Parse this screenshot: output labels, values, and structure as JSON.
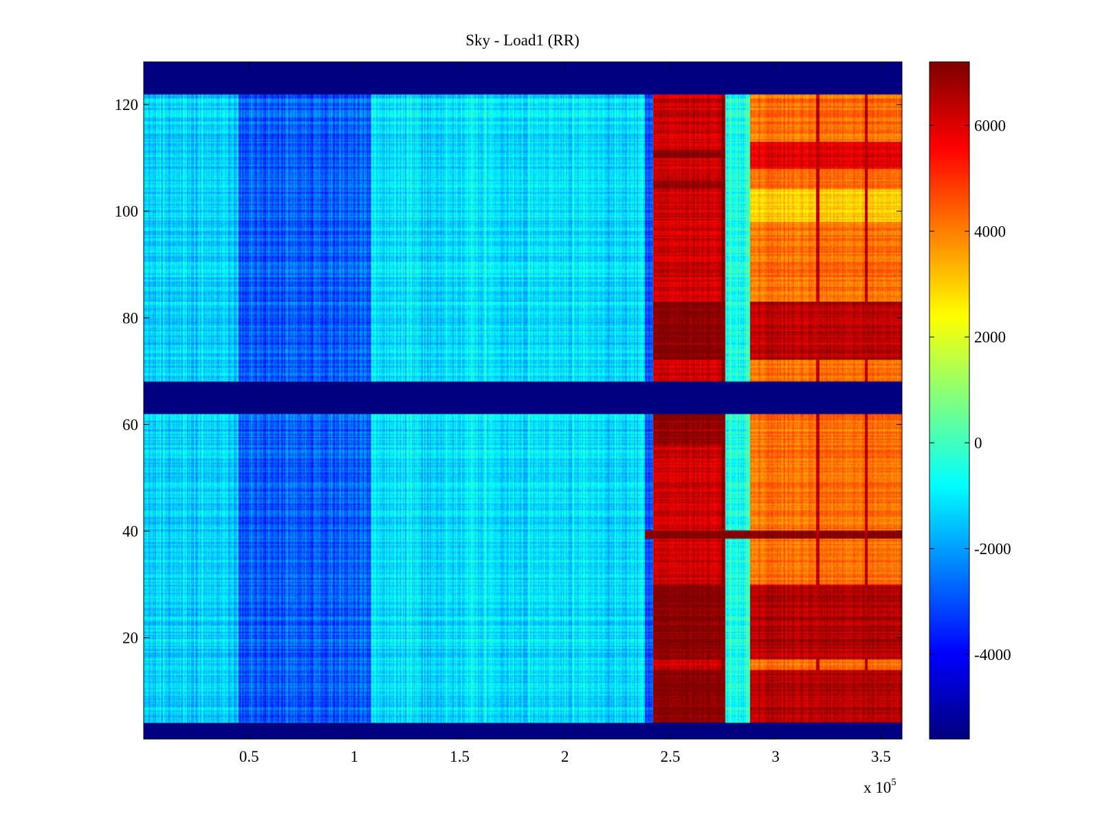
{
  "chart_data": {
    "type": "heatmap",
    "title": "Sky - Load1 (RR)",
    "xlabel": "",
    "ylabel": "",
    "x_exponent_label": "x 10",
    "x_exponent_power": "5",
    "xlim": [
      0,
      3.6
    ],
    "ylim": [
      1,
      128
    ],
    "x_ticks": [
      0.5,
      1,
      1.5,
      2,
      2.5,
      3,
      3.5
    ],
    "x_tick_labels": [
      "0.5",
      "1",
      "1.5",
      "2",
      "2.5",
      "3",
      "3.5"
    ],
    "y_ticks": [
      20,
      40,
      60,
      80,
      100,
      120
    ],
    "y_tick_labels": [
      "20",
      "40",
      "60",
      "80",
      "100",
      "120"
    ],
    "colorbar": {
      "range": [
        -5600,
        7200
      ],
      "ticks": [
        -4000,
        -2000,
        0,
        2000,
        4000,
        6000
      ],
      "tick_labels": [
        "-4000",
        "-2000",
        "0",
        "2000",
        "4000",
        "6000"
      ],
      "colormap": "jet"
    },
    "masked_rows": [
      [
        1,
        4
      ],
      [
        62,
        68
      ],
      [
        122,
        128
      ]
    ],
    "regions": [
      {
        "x_range": [
          0,
          0.45
        ],
        "value": -1400
      },
      {
        "x_range": [
          0.45,
          1.08
        ],
        "value": -2800
      },
      {
        "x_range": [
          1.08,
          2.38
        ],
        "value": -1200
      },
      {
        "x_range": [
          2.38,
          2.42
        ],
        "value": -3000
      },
      {
        "x_range": [
          2.42,
          2.76
        ],
        "value": 6200
      },
      {
        "x_range": [
          2.76,
          2.88
        ],
        "value": -500
      },
      {
        "x_range": [
          2.88,
          3.6
        ],
        "value": 4200
      }
    ],
    "bands": [
      {
        "y_range": [
          72,
          83
        ],
        "x_range": [
          2.42,
          2.76
        ],
        "value": 7200
      },
      {
        "y_range": [
          72,
          83
        ],
        "x_range": [
          2.88,
          3.6
        ],
        "value": 6500
      },
      {
        "y_range": [
          16,
          30
        ],
        "x_range": [
          2.42,
          2.76
        ],
        "value": 7200
      },
      {
        "y_range": [
          16,
          30
        ],
        "x_range": [
          2.88,
          3.6
        ],
        "value": 6600
      },
      {
        "y_range": [
          4,
          14
        ],
        "x_range": [
          2.42,
          2.76
        ],
        "value": 7200
      },
      {
        "y_range": [
          4,
          14
        ],
        "x_range": [
          2.88,
          3.6
        ],
        "value": 6600
      },
      {
        "y_range": [
          56,
          62
        ],
        "x_range": [
          2.42,
          2.76
        ],
        "value": 7000
      },
      {
        "y_range": [
          38.5,
          40
        ],
        "x_range": [
          2.38,
          3.6
        ],
        "value": 7200
      },
      {
        "y_range": [
          110,
          111.5
        ],
        "x_range": [
          2.42,
          2.76
        ],
        "value": 7200
      },
      {
        "y_range": [
          104,
          106
        ],
        "x_range": [
          2.42,
          2.76
        ],
        "value": 6800
      },
      {
        "y_range": [
          108,
          113
        ],
        "x_range": [
          2.88,
          3.6
        ],
        "value": 6000
      },
      {
        "y_range": [
          98,
          104
        ],
        "x_range": [
          2.88,
          3.6
        ],
        "value": 3000
      }
    ],
    "vertical_lines": [
      {
        "x": 2.75,
        "y_range": [
          4,
          122
        ],
        "value": 7200
      },
      {
        "x": 3.2,
        "y_range": [
          4,
          122
        ],
        "value": 6500
      },
      {
        "x": 3.43,
        "y_range": [
          4,
          122
        ],
        "value": 6500
      }
    ]
  }
}
